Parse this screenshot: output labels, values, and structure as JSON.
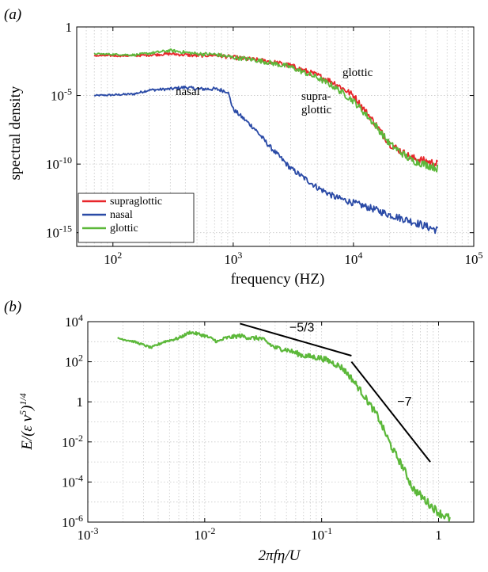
{
  "chart_data": [
    {
      "panel": "(a)",
      "type": "line",
      "xlabel": "frequency (HZ)",
      "ylabel": "spectral density",
      "xscale": "log",
      "yscale": "log",
      "xlim": [
        50,
        100000
      ],
      "ylim": [
        1e-16,
        1
      ],
      "grid": true,
      "legend_position": "bottom-left",
      "x_ticks": [
        100,
        1000,
        10000,
        100000
      ],
      "x_tick_labels": [
        {
          "base": "10",
          "exp": "2"
        },
        {
          "base": "10",
          "exp": "3"
        },
        {
          "base": "10",
          "exp": "4"
        },
        {
          "base": "10",
          "exp": "5"
        }
      ],
      "y_ticks": [
        1,
        1e-05,
        1e-10,
        1e-15
      ],
      "y_tick_labels": [
        {
          "base": "1",
          "exp": ""
        },
        {
          "base": "10",
          "exp": "-5"
        },
        {
          "base": "10",
          "exp": "-10"
        },
        {
          "base": "10",
          "exp": "-15"
        }
      ],
      "annotations": [
        "glottic",
        "nasal",
        "supra-",
        "glottic"
      ],
      "series": [
        {
          "name": "supraglottic",
          "color": "#e8262b",
          "x": [
            70,
            100,
            150,
            200,
            300,
            500,
            700,
            1000,
            1500,
            2000,
            3000,
            5000,
            7000,
            10000,
            15000,
            20000,
            30000,
            50000
          ],
          "y": [
            0.008,
            0.008,
            0.008,
            0.009,
            0.011,
            0.008,
            0.009,
            0.006,
            0.004,
            0.003,
            0.0015,
            0.0003,
            8e-05,
            1e-05,
            1e-07,
            3e-09,
            3e-10,
            1e-10
          ]
        },
        {
          "name": "nasal",
          "color": "#2a4aa6",
          "x": [
            70,
            100,
            150,
            200,
            300,
            400,
            500,
            700,
            900,
            1000,
            1500,
            2000,
            3000,
            5000,
            7000,
            10000,
            15000,
            20000,
            30000,
            50000
          ],
          "y": [
            1e-05,
            1.1e-05,
            1.3e-05,
            2.5e-05,
            3e-05,
            4e-05,
            3e-05,
            3e-05,
            2e-05,
            1e-06,
            4e-08,
            2e-09,
            5e-11,
            2e-12,
            4e-13,
            1.5e-13,
            5e-14,
            2e-14,
            7e-15,
            1.5e-15
          ]
        },
        {
          "name": "glottic",
          "color": "#5cb83a",
          "x": [
            70,
            100,
            150,
            200,
            300,
            500,
            700,
            1000,
            1500,
            2000,
            3000,
            5000,
            7000,
            10000,
            15000,
            20000,
            30000,
            50000
          ],
          "y": [
            0.011,
            0.01,
            0.009,
            0.012,
            0.019,
            0.011,
            0.01,
            0.006,
            0.004,
            0.0025,
            0.0012,
            0.0002,
            4e-05,
            4e-06,
            8e-08,
            3e-09,
            2e-10,
            5e-11
          ]
        }
      ]
    },
    {
      "panel": "(b)",
      "type": "line",
      "xlabel": "2πfη/U",
      "ylabel": "E/(ε ν⁵)¹ᐟ⁴",
      "xscale": "log",
      "yscale": "log",
      "xlim": [
        0.001,
        2
      ],
      "ylim": [
        1e-06,
        10000
      ],
      "grid": true,
      "x_ticks": [
        0.001,
        0.01,
        0.1,
        1
      ],
      "x_tick_labels": [
        {
          "base": "10",
          "exp": "-3"
        },
        {
          "base": "10",
          "exp": "-2"
        },
        {
          "base": "10",
          "exp": "-1"
        },
        {
          "base": "1",
          "exp": ""
        }
      ],
      "y_ticks": [
        10000,
        100,
        1,
        0.01,
        0.0001,
        1e-06
      ],
      "y_tick_labels": [
        {
          "base": "10",
          "exp": "4"
        },
        {
          "base": "10",
          "exp": "2"
        },
        {
          "base": "1",
          "exp": ""
        },
        {
          "base": "10",
          "exp": "-2"
        },
        {
          "base": "10",
          "exp": "-4"
        },
        {
          "base": "10",
          "exp": "-6"
        }
      ],
      "series": [
        {
          "name": "",
          "color": "#5cb83a",
          "x": [
            0.0018,
            0.0025,
            0.0035,
            0.0045,
            0.006,
            0.0075,
            0.01,
            0.013,
            0.015,
            0.02,
            0.025,
            0.03,
            0.04,
            0.05,
            0.07,
            0.1,
            0.12,
            0.15,
            0.18,
            0.22,
            0.3,
            0.4,
            0.5,
            0.6,
            0.8,
            1.0,
            1.25
          ],
          "y": [
            1500,
            1000,
            500,
            1000,
            1500,
            3000,
            2000,
            1000,
            1500,
            2000,
            1500,
            1500,
            500,
            400,
            200,
            150,
            100,
            50,
            15,
            3,
            0.2,
            0.005,
            0.0005,
            5e-05,
            1e-05,
            3e-06,
            1.5e-06
          ]
        }
      ],
      "reference_lines": [
        {
          "label": "−5/3",
          "x": [
            0.02,
            0.18
          ],
          "y": [
            8000,
            200
          ]
        },
        {
          "label": "−7",
          "x": [
            0.18,
            0.85
          ],
          "y": [
            100,
            0.001
          ]
        }
      ]
    }
  ]
}
